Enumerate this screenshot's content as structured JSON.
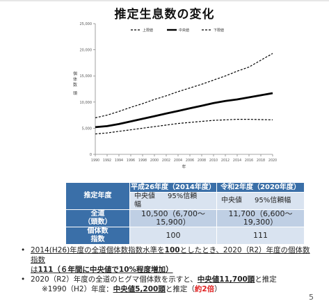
{
  "chart_data": {
    "type": "line",
    "title": "推定生息数の変化",
    "xlabel": "年",
    "ylabel": "個体数",
    "ylabel_unit": "頭",
    "x": [
      1990,
      1992,
      1994,
      1996,
      1998,
      2000,
      2002,
      2004,
      2006,
      2008,
      2010,
      2012,
      2014,
      2016,
      2018,
      2020
    ],
    "xticks": [
      "1990",
      "1992",
      "1994",
      "1996",
      "1998",
      "2000",
      "2002",
      "2004",
      "2006",
      "2008",
      "2010",
      "2012",
      "2014",
      "2016",
      "2018",
      "2020"
    ],
    "yticks": [
      0,
      5000,
      10000,
      15000,
      20000,
      25000
    ],
    "ytick_labels": [
      "0",
      "5,000",
      "10,000",
      "15,000",
      "20,000",
      "25,000"
    ],
    "ylim": [
      0,
      25000
    ],
    "grid": false,
    "legend_position": "top-center",
    "series": [
      {
        "name": "上限値",
        "style": "dashed",
        "color": "#000000",
        "width": 1.2,
        "values": [
          7000,
          7500,
          8200,
          9000,
          9700,
          10500,
          11200,
          12000,
          12700,
          13400,
          14200,
          15000,
          15900,
          16700,
          18000,
          19300
        ]
      },
      {
        "name": "中央値",
        "style": "solid",
        "color": "#000000",
        "width": 2.8,
        "values": [
          5200,
          5400,
          5800,
          6300,
          6800,
          7300,
          7800,
          8300,
          8800,
          9300,
          9800,
          10200,
          10500,
          10900,
          11300,
          11700
        ]
      },
      {
        "name": "下限値",
        "style": "dashed",
        "color": "#000000",
        "width": 1.2,
        "values": [
          3900,
          4100,
          4400,
          4700,
          5000,
          5300,
          5600,
          5900,
          6100,
          6300,
          6500,
          6600,
          6700,
          6700,
          6650,
          6600
        ]
      }
    ]
  },
  "table": {
    "header_label": "推定年度",
    "year_a": "平成26年度（2014年度）",
    "year_b": "令和2年度（2020年度）",
    "sub_median": "中央値",
    "sub_ci": "95%信頼幅",
    "row1_label_line1": "全道",
    "row1_label_line2": "（頭数）",
    "row1_a": "10,500（6,700〜15,900）",
    "row1_b": "11,700（6,600〜19,300）",
    "row2_label_line1": "個体数",
    "row2_label_line2": "指数",
    "row2_a": "100",
    "row2_b": "111"
  },
  "bullets": {
    "b1_p1": "2014(H26)年度の全道個体数指数水準を",
    "b1_p2": "100",
    "b1_p3": "としたとき、2020（R2）年度の個体数指数",
    "b1_p4": "は",
    "b1_p5": "111",
    "b1_p6": "（６年間に",
    "b1_p7": "中央値で10%程度増加",
    "b1_p8": "）",
    "b2_p1": "2020（R2）年度の全道のヒグマ個体数を示すと、",
    "b2_p2": "中央値11,700頭",
    "b2_p3": "と推定",
    "note_p1": "※1990（H2）年度：",
    "note_p2": "中央値5,200頭",
    "note_p3": "と推定（",
    "note_p4": "約2倍",
    "note_p5": "）"
  },
  "page_number": "5"
}
